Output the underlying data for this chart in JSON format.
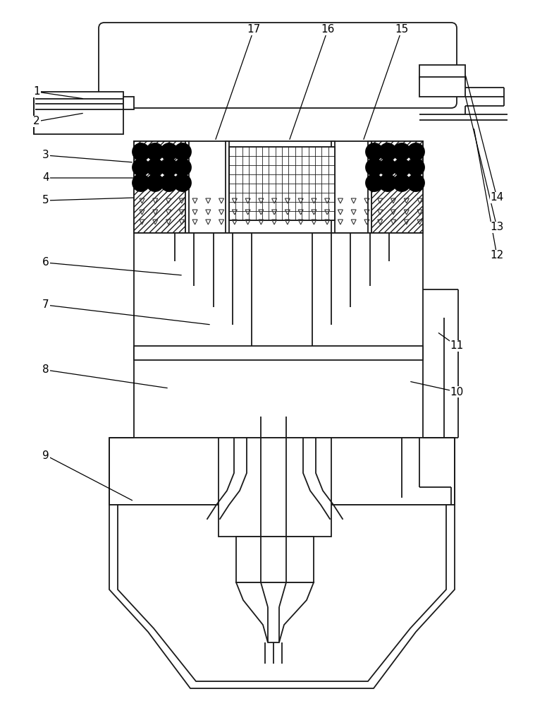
{
  "bg_color": "#ffffff",
  "line_color": "#1a1a1a",
  "figsize": [
    7.59,
    10.0
  ],
  "dpi": 100,
  "lw": 1.3
}
